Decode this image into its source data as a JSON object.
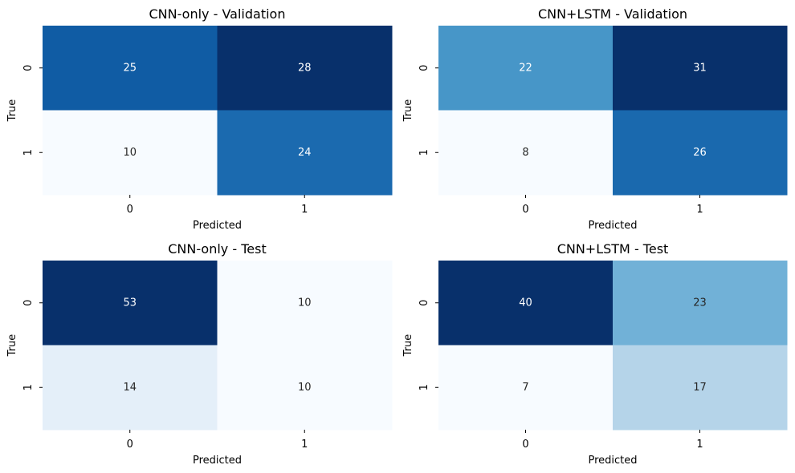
{
  "chart_data": [
    {
      "type": "heatmap",
      "title": "CNN-only - Validation",
      "xlabel": "Predicted",
      "ylabel": "True",
      "x_ticks": [
        "0",
        "1"
      ],
      "y_ticks": [
        "0",
        "1"
      ],
      "values": [
        [
          25,
          28
        ],
        [
          10,
          24
        ]
      ],
      "colormap": "Blues"
    },
    {
      "type": "heatmap",
      "title": "CNN+LSTM - Validation",
      "xlabel": "Predicted",
      "ylabel": "True",
      "x_ticks": [
        "0",
        "1"
      ],
      "y_ticks": [
        "0",
        "1"
      ],
      "values": [
        [
          22,
          31
        ],
        [
          8,
          26
        ]
      ],
      "colormap": "Blues"
    },
    {
      "type": "heatmap",
      "title": "CNN-only - Test",
      "xlabel": "Predicted",
      "ylabel": "True",
      "x_ticks": [
        "0",
        "1"
      ],
      "y_ticks": [
        "0",
        "1"
      ],
      "values": [
        [
          53,
          10
        ],
        [
          14,
          10
        ]
      ],
      "colormap": "Blues"
    },
    {
      "type": "heatmap",
      "title": "CNN+LSTM - Test",
      "xlabel": "Predicted",
      "ylabel": "True",
      "x_ticks": [
        "0",
        "1"
      ],
      "y_ticks": [
        "0",
        "1"
      ],
      "values": [
        [
          40,
          23
        ],
        [
          7,
          17
        ]
      ],
      "colormap": "Blues"
    }
  ]
}
